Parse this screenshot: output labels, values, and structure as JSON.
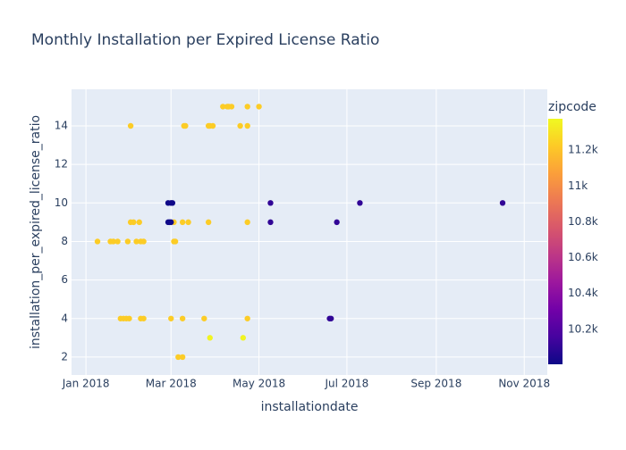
{
  "chart_data": {
    "type": "scatter",
    "title": "Monthly Installation per Expired License Ratio",
    "x_label": "installationdate",
    "y_label": "installation_per_expired_license_ratio",
    "x": [
      "2018-01-09",
      "2018-01-18",
      "2018-01-20",
      "2018-01-23",
      "2018-01-30",
      "2018-02-05",
      "2018-02-08",
      "2018-02-10",
      "2018-03-03",
      "2018-03-04",
      "2018-01-25",
      "2018-01-27",
      "2018-01-29",
      "2018-01-31",
      "2018-02-08",
      "2018-02-10",
      "2018-03-01",
      "2018-03-09",
      "2018-03-24",
      "2018-04-23",
      "2018-02-01",
      "2018-03-10",
      "2018-03-11",
      "2018-03-27",
      "2018-03-28",
      "2018-03-30",
      "2018-04-18",
      "2018-04-23",
      "2018-02-01",
      "2018-02-03",
      "2018-02-07",
      "2018-03-03",
      "2018-03-09",
      "2018-03-13",
      "2018-03-27",
      "2018-04-23",
      "2018-02-27",
      "2018-02-28",
      "2018-03-01",
      "2018-02-27",
      "2018-03-01",
      "2018-03-02",
      "2018-05-09",
      "2018-07-10",
      "2018-10-17",
      "2018-05-09",
      "2018-06-24",
      "2018-04-06",
      "2018-04-09",
      "2018-04-10",
      "2018-04-12",
      "2018-04-23",
      "2018-05-01",
      "2018-03-28",
      "2018-04-20",
      "2018-03-06",
      "2018-03-09",
      "2018-06-19",
      "2018-06-20"
    ],
    "y": [
      8,
      8,
      8,
      8,
      8,
      8,
      8,
      8,
      8,
      8,
      4,
      4,
      4,
      4,
      4,
      4,
      4,
      4,
      4,
      4,
      14,
      14,
      14,
      14,
      14,
      14,
      14,
      14,
      9,
      9,
      9,
      9,
      9,
      9,
      9,
      9,
      9,
      9,
      9,
      10,
      10,
      10,
      10,
      10,
      10,
      9,
      9,
      15,
      15,
      15,
      15,
      15,
      15,
      3,
      3,
      2,
      2,
      4,
      4
    ],
    "color_values": [
      11230,
      11230,
      11230,
      11230,
      11230,
      11230,
      11230,
      11230,
      11230,
      11230,
      11230,
      11230,
      11230,
      11230,
      11230,
      11230,
      11230,
      11230,
      11230,
      11230,
      11230,
      11230,
      11230,
      11230,
      11230,
      11230,
      11230,
      11230,
      11230,
      11230,
      11230,
      11230,
      11230,
      11230,
      11230,
      11230,
      10010,
      10010,
      10010,
      10010,
      10010,
      10010,
      10100,
      10100,
      10100,
      10100,
      10100,
      11230,
      11230,
      11230,
      11230,
      11230,
      11230,
      11360,
      11360,
      11230,
      11230,
      10100,
      10100
    ],
    "colorscale": [
      "#0d0887",
      "#46039f",
      "#7201a8",
      "#9c179e",
      "#bd3786",
      "#d8576b",
      "#ed7953",
      "#fb9f3a",
      "#fdca26",
      "#f0f921"
    ],
    "xlim": [
      "2017-12-22",
      "2018-11-17"
    ],
    "xticks": [
      {
        "value": "2018-01-01",
        "label": "Jan 2018"
      },
      {
        "value": "2018-03-01",
        "label": "Mar 2018"
      },
      {
        "value": "2018-05-01",
        "label": "May 2018"
      },
      {
        "value": "2018-07-01",
        "label": "Jul 2018"
      },
      {
        "value": "2018-09-01",
        "label": "Sep 2018"
      },
      {
        "value": "2018-11-01",
        "label": "Nov 2018"
      }
    ],
    "ylim": [
      1.07,
      15.9
    ],
    "yticks": [
      2,
      4,
      6,
      8,
      10,
      12,
      14
    ],
    "grid": true,
    "colorbar": {
      "title": "zipcode",
      "lim": [
        10005,
        11375
      ],
      "ticks": [
        {
          "value": 10200,
          "label": "10.2k"
        },
        {
          "value": 10400,
          "label": "10.4k"
        },
        {
          "value": 10600,
          "label": "10.6k"
        },
        {
          "value": 10800,
          "label": "10.8k"
        },
        {
          "value": 11000,
          "label": "11k"
        },
        {
          "value": 11200,
          "label": "11.2k"
        }
      ]
    }
  }
}
